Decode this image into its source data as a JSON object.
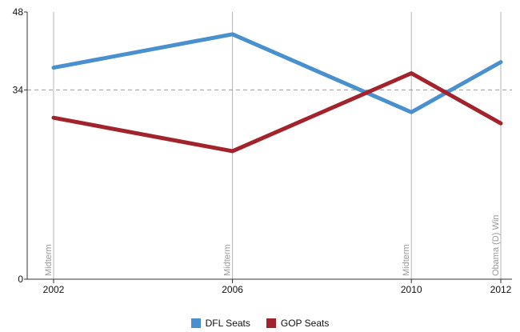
{
  "chart_data": {
    "type": "line",
    "x": [
      2002,
      2006,
      2010,
      2012
    ],
    "xlim": [
      2002,
      2012
    ],
    "ylim": [
      0,
      48
    ],
    "y_ticks": [
      0,
      34,
      48
    ],
    "x_tick_labels": [
      "2002",
      "2006",
      "2010",
      "2012"
    ],
    "reference_line": 34,
    "series": [
      {
        "name": "DFL Seats",
        "color": "#4a90cf",
        "values": [
          38,
          44,
          30,
          39
        ]
      },
      {
        "name": "GOP Seats",
        "color": "#a3232d",
        "values": [
          29,
          23,
          37,
          28
        ]
      }
    ],
    "annotations": [
      {
        "x": 2002,
        "text": "Midterm"
      },
      {
        "x": 2006,
        "text": "Midterm"
      },
      {
        "x": 2010,
        "text": "Midterm"
      },
      {
        "x": 2012,
        "text": "Obama (D) Win"
      }
    ],
    "grid": "vertical lines at data years",
    "legend_position": "bottom"
  }
}
